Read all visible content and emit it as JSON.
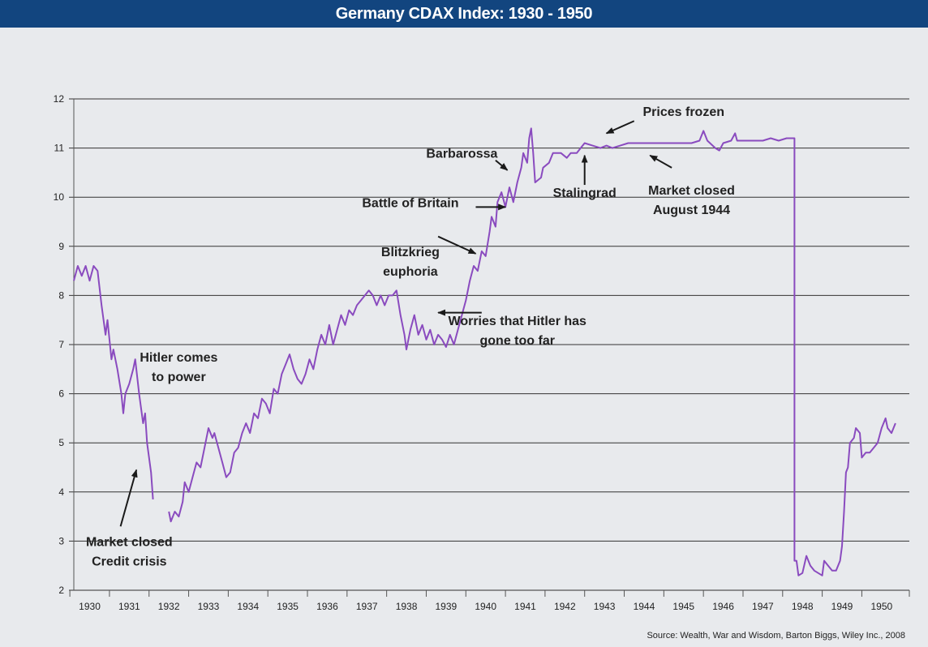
{
  "chart_data": {
    "type": "line",
    "title": "Germany CDAX Index: 1930 - 1950",
    "source": "Source: Wealth, War and Wisdom, Barton Biggs, Wiley Inc., 2008",
    "xlabel": "",
    "ylabel": "",
    "x_tick_labels": [
      "1930",
      "1931",
      "1932",
      "1933",
      "1934",
      "1935",
      "1936",
      "1937",
      "1938",
      "1939",
      "1940",
      "1941",
      "1942",
      "1943",
      "1944",
      "1945",
      "1946",
      "1947",
      "1948",
      "1949",
      "1950"
    ],
    "y_ticks": [
      2,
      3,
      4,
      5,
      6,
      7,
      8,
      9,
      10,
      11,
      12
    ],
    "xlim": [
      1929.8,
      1950.9
    ],
    "ylim": [
      2,
      12
    ],
    "grid": "horizontal",
    "line_color": "#8a4bbf",
    "series": [
      {
        "segments": [
          [
            [
              1929.8,
              8.3
            ],
            [
              1929.9,
              8.6
            ],
            [
              1930.0,
              8.4
            ],
            [
              1930.1,
              8.6
            ],
            [
              1930.2,
              8.3
            ],
            [
              1930.3,
              8.6
            ],
            [
              1930.4,
              8.5
            ],
            [
              1930.5,
              7.8
            ],
            [
              1930.6,
              7.2
            ],
            [
              1930.65,
              7.5
            ],
            [
              1930.75,
              6.7
            ],
            [
              1930.8,
              6.9
            ],
            [
              1930.9,
              6.5
            ],
            [
              1931.0,
              6.0
            ],
            [
              1931.05,
              5.6
            ],
            [
              1931.1,
              6.0
            ],
            [
              1931.2,
              6.2
            ],
            [
              1931.3,
              6.5
            ],
            [
              1931.35,
              6.7
            ],
            [
              1931.45,
              6.0
            ],
            [
              1931.55,
              5.4
            ],
            [
              1931.6,
              5.6
            ],
            [
              1931.65,
              5.0
            ],
            [
              1931.75,
              4.4
            ],
            [
              1931.8,
              3.85
            ]
          ],
          [
            [
              1932.2,
              3.6
            ],
            [
              1932.25,
              3.4
            ],
            [
              1932.35,
              3.6
            ],
            [
              1932.45,
              3.5
            ],
            [
              1932.55,
              3.8
            ],
            [
              1932.6,
              4.2
            ],
            [
              1932.7,
              4.0
            ],
            [
              1932.8,
              4.3
            ],
            [
              1932.9,
              4.6
            ],
            [
              1933.0,
              4.5
            ],
            [
              1933.1,
              4.9
            ],
            [
              1933.2,
              5.3
            ],
            [
              1933.3,
              5.1
            ],
            [
              1933.35,
              5.2
            ],
            [
              1933.45,
              4.9
            ],
            [
              1933.55,
              4.6
            ],
            [
              1933.65,
              4.3
            ],
            [
              1933.75,
              4.4
            ],
            [
              1933.85,
              4.8
            ],
            [
              1933.95,
              4.9
            ],
            [
              1934.05,
              5.2
            ],
            [
              1934.15,
              5.4
            ],
            [
              1934.25,
              5.2
            ],
            [
              1934.35,
              5.6
            ],
            [
              1934.45,
              5.5
            ],
            [
              1934.55,
              5.9
            ],
            [
              1934.65,
              5.8
            ],
            [
              1934.75,
              5.6
            ],
            [
              1934.85,
              6.1
            ],
            [
              1934.95,
              6.0
            ],
            [
              1935.05,
              6.4
            ],
            [
              1935.15,
              6.6
            ],
            [
              1935.25,
              6.8
            ],
            [
              1935.35,
              6.5
            ],
            [
              1935.45,
              6.3
            ],
            [
              1935.55,
              6.2
            ],
            [
              1935.65,
              6.4
            ],
            [
              1935.75,
              6.7
            ],
            [
              1935.85,
              6.5
            ],
            [
              1935.95,
              6.9
            ],
            [
              1936.05,
              7.2
            ],
            [
              1936.15,
              7.0
            ],
            [
              1936.25,
              7.4
            ],
            [
              1936.35,
              7.0
            ],
            [
              1936.45,
              7.3
            ],
            [
              1936.55,
              7.6
            ],
            [
              1936.65,
              7.4
            ],
            [
              1936.75,
              7.7
            ],
            [
              1936.85,
              7.6
            ],
            [
              1936.95,
              7.8
            ],
            [
              1937.05,
              7.9
            ],
            [
              1937.15,
              8.0
            ],
            [
              1937.25,
              8.1
            ],
            [
              1937.35,
              8.0
            ],
            [
              1937.45,
              7.8
            ],
            [
              1937.55,
              8.0
            ],
            [
              1937.65,
              7.8
            ],
            [
              1937.75,
              8.0
            ],
            [
              1937.85,
              8.0
            ],
            [
              1937.95,
              8.1
            ],
            [
              1938.05,
              7.6
            ],
            [
              1938.15,
              7.2
            ],
            [
              1938.2,
              6.9
            ],
            [
              1938.3,
              7.3
            ],
            [
              1938.4,
              7.6
            ],
            [
              1938.5,
              7.2
            ],
            [
              1938.6,
              7.4
            ],
            [
              1938.7,
              7.1
            ],
            [
              1938.8,
              7.3
            ],
            [
              1938.9,
              7.0
            ],
            [
              1939.0,
              7.2
            ],
            [
              1939.1,
              7.1
            ],
            [
              1939.2,
              6.95
            ],
            [
              1939.3,
              7.2
            ],
            [
              1939.4,
              7.0
            ],
            [
              1939.5,
              7.3
            ],
            [
              1939.6,
              7.6
            ],
            [
              1939.7,
              7.9
            ],
            [
              1939.8,
              8.3
            ],
            [
              1939.9,
              8.6
            ],
            [
              1940.0,
              8.5
            ],
            [
              1940.1,
              8.9
            ],
            [
              1940.2,
              8.8
            ],
            [
              1940.3,
              9.3
            ],
            [
              1940.35,
              9.6
            ],
            [
              1940.45,
              9.4
            ],
            [
              1940.5,
              9.9
            ],
            [
              1940.6,
              10.1
            ],
            [
              1940.7,
              9.8
            ],
            [
              1940.8,
              10.2
            ],
            [
              1940.9,
              9.9
            ],
            [
              1941.0,
              10.3
            ],
            [
              1941.1,
              10.6
            ],
            [
              1941.15,
              10.9
            ],
            [
              1941.25,
              10.7
            ],
            [
              1941.3,
              11.2
            ],
            [
              1941.35,
              11.4
            ],
            [
              1941.4,
              10.9
            ],
            [
              1941.45,
              10.3
            ],
            [
              1941.6,
              10.4
            ],
            [
              1941.65,
              10.6
            ],
            [
              1941.8,
              10.7
            ],
            [
              1941.9,
              10.9
            ],
            [
              1942.1,
              10.9
            ],
            [
              1942.25,
              10.8
            ],
            [
              1942.35,
              10.9
            ],
            [
              1942.5,
              10.9
            ],
            [
              1942.6,
              11.0
            ],
            [
              1942.7,
              11.1
            ],
            [
              1942.9,
              11.05
            ],
            [
              1943.1,
              11.0
            ],
            [
              1943.25,
              11.05
            ],
            [
              1943.4,
              11.0
            ],
            [
              1943.6,
              11.05
            ],
            [
              1943.8,
              11.1
            ],
            [
              1944.0,
              11.1
            ],
            [
              1944.5,
              11.1
            ],
            [
              1945.0,
              11.1
            ],
            [
              1945.4,
              11.1
            ],
            [
              1945.6,
              11.15
            ],
            [
              1945.7,
              11.35
            ],
            [
              1945.8,
              11.15
            ],
            [
              1946.0,
              11.0
            ],
            [
              1946.1,
              10.95
            ],
            [
              1946.2,
              11.1
            ],
            [
              1946.4,
              11.15
            ],
            [
              1946.5,
              11.3
            ],
            [
              1946.55,
              11.15
            ],
            [
              1946.8,
              11.15
            ],
            [
              1947.0,
              11.15
            ],
            [
              1947.2,
              11.15
            ],
            [
              1947.4,
              11.2
            ],
            [
              1947.6,
              11.15
            ],
            [
              1947.8,
              11.2
            ],
            [
              1947.95,
              11.2
            ],
            [
              1948.0,
              11.2
            ],
            [
              1948.0,
              2.6
            ],
            [
              1948.05,
              2.6
            ],
            [
              1948.1,
              2.3
            ],
            [
              1948.2,
              2.35
            ],
            [
              1948.3,
              2.7
            ],
            [
              1948.4,
              2.5
            ],
            [
              1948.5,
              2.4
            ],
            [
              1948.6,
              2.35
            ],
            [
              1948.7,
              2.3
            ],
            [
              1948.75,
              2.6
            ],
            [
              1948.85,
              2.5
            ],
            [
              1948.95,
              2.4
            ],
            [
              1949.05,
              2.4
            ],
            [
              1949.15,
              2.6
            ],
            [
              1949.2,
              2.9
            ],
            [
              1949.25,
              3.6
            ],
            [
              1949.3,
              4.4
            ],
            [
              1949.35,
              4.5
            ],
            [
              1949.4,
              5.0
            ],
            [
              1949.5,
              5.1
            ],
            [
              1949.55,
              5.3
            ],
            [
              1949.65,
              5.2
            ],
            [
              1949.7,
              4.7
            ],
            [
              1949.8,
              4.8
            ],
            [
              1949.9,
              4.8
            ],
            [
              1950.0,
              4.9
            ],
            [
              1950.1,
              5.0
            ],
            [
              1950.2,
              5.3
            ],
            [
              1950.3,
              5.5
            ],
            [
              1950.35,
              5.3
            ],
            [
              1950.45,
              5.2
            ],
            [
              1950.55,
              5.4
            ]
          ]
        ]
      }
    ],
    "annotations": [
      {
        "text": "Hitler comes\nto power",
        "x": 1932.45,
        "y": 6.65,
        "arrow": null
      },
      {
        "text": "Market closed\nCredit crisis",
        "x": 1931.2,
        "y": 2.9,
        "arrow": [
          [
            1930.98,
            3.3
          ],
          [
            1931.38,
            4.45
          ]
        ]
      },
      {
        "text": "Worries that Hitler has\ngone too far",
        "x": 1941.0,
        "y": 7.4,
        "arrow": [
          [
            1940.1,
            7.65
          ],
          [
            1939.0,
            7.65
          ]
        ]
      },
      {
        "text": "Blitzkrieg\neuphoria",
        "x": 1938.3,
        "y": 8.8,
        "arrow": [
          [
            1939.0,
            9.2
          ],
          [
            1939.95,
            8.85
          ]
        ]
      },
      {
        "text": "Battle of Britain",
        "x": 1938.3,
        "y": 9.8,
        "arrow": [
          [
            1939.95,
            9.8
          ],
          [
            1940.7,
            9.8
          ]
        ]
      },
      {
        "text": "Barbarossa",
        "x": 1939.6,
        "y": 10.8,
        "arrow": [
          [
            1940.45,
            10.75
          ],
          [
            1940.75,
            10.55
          ]
        ]
      },
      {
        "text": "Stalingrad",
        "x": 1942.7,
        "y": 10.0,
        "arrow": [
          [
            1942.7,
            10.25
          ],
          [
            1942.7,
            10.85
          ]
        ]
      },
      {
        "text": "Prices frozen",
        "x": 1945.2,
        "y": 11.65,
        "arrow": [
          [
            1943.95,
            11.55
          ],
          [
            1943.25,
            11.3
          ]
        ]
      },
      {
        "text": "Market closed\nAugust 1944",
        "x": 1945.4,
        "y": 10.05,
        "arrow": [
          [
            1944.9,
            10.6
          ],
          [
            1944.35,
            10.85
          ]
        ]
      }
    ]
  }
}
